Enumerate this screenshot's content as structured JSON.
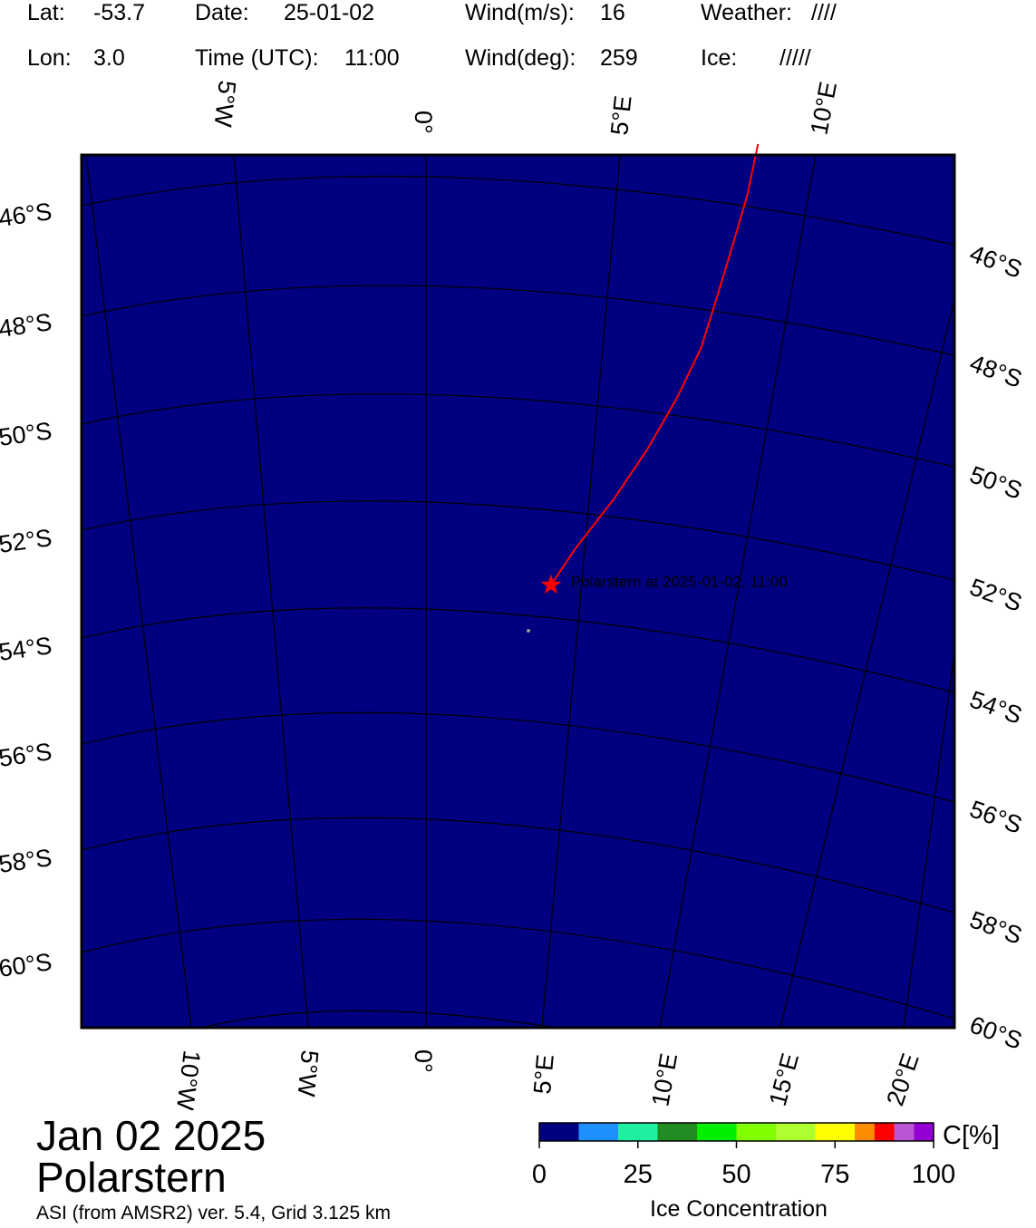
{
  "header": {
    "lat_label": "Lat:",
    "lat_value": "-53.7",
    "lon_label": "Lon:",
    "lon_value": "3.0",
    "date_label": "Date:",
    "date_value": "25-01-02",
    "time_label": "Time (UTC):",
    "time_value": "11:00",
    "wind_ms_label": "Wind(m/s):",
    "wind_ms_value": "16",
    "wind_deg_label": "Wind(deg):",
    "wind_deg_value": "259",
    "weather_label": "Weather:",
    "weather_value": "////",
    "ice_label": "Ice:",
    "ice_value": "/////"
  },
  "map": {
    "ocean_color": "#000080",
    "track_color": "#ff0000",
    "position_marker": "star-icon",
    "position_label": "Polarstern at 2025-01-02, 11:00",
    "ship_position": {
      "lat": -53.7,
      "lon": 3.0
    },
    "track": [
      {
        "lat": -45.0,
        "lon": 8.9
      },
      {
        "lat": -46.0,
        "lon": 8.5
      },
      {
        "lat": -47.0,
        "lon": 8.0
      },
      {
        "lat": -48.0,
        "lon": 7.5
      },
      {
        "lat": -49.0,
        "lon": 7.0
      },
      {
        "lat": -50.0,
        "lon": 6.3
      },
      {
        "lat": -51.0,
        "lon": 5.5
      },
      {
        "lat": -52.0,
        "lon": 4.6
      },
      {
        "lat": -53.0,
        "lon": 3.6
      },
      {
        "lat": -53.7,
        "lon": 3.0
      }
    ],
    "lat_labels_left": [
      "46°S",
      "48°S",
      "50°S",
      "52°S",
      "54°S",
      "56°S",
      "58°S",
      "60°S"
    ],
    "lat_labels_right": [
      "46°S",
      "48°S",
      "50°S",
      "52°S",
      "54°S",
      "56°S",
      "58°S",
      "60°S"
    ],
    "lon_labels_top": [
      "5°W",
      "0°",
      "5°E",
      "10°E"
    ],
    "lon_labels_bottom": [
      "10°W",
      "5°W",
      "0°",
      "5°E",
      "10°E",
      "15°E",
      "20°E"
    ]
  },
  "footer": {
    "date_title": "Jan 02 2025",
    "ship_title": "Polarstern",
    "source": "ASI (from AMSR2) ver. 5.4,  Grid 3.125 km"
  },
  "colorbar": {
    "unit": "C[%]",
    "title": "Ice Concentration",
    "tick_labels": [
      "0",
      "25",
      "50",
      "75",
      "100"
    ],
    "colors": [
      "#000080",
      "#1e90ff",
      "#1ef0a0",
      "#228b22",
      "#00ee00",
      "#7fff00",
      "#adff2f",
      "#ffff00",
      "#ff8c00",
      "#ff0000",
      "#ba55d3",
      "#9400d3"
    ]
  }
}
